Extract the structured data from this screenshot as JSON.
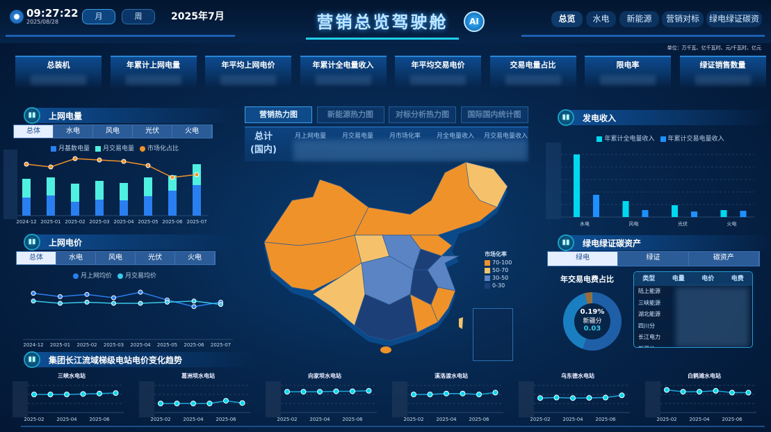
{
  "header": {
    "time": "09:27:22",
    "date": "2025/08/28",
    "period_tabs": [
      "月",
      "周"
    ],
    "active_period": "月",
    "current_month": "2025年7月",
    "title": "营销总览驾驶舱",
    "ai_label": "AI",
    "nav": [
      "总览",
      "水电",
      "新能源",
      "营销对标",
      "绿电绿证碳资"
    ],
    "active_nav": "总览",
    "unit_note": "单位：万千瓦、亿千瓦时、元/千瓦时、亿元"
  },
  "kpis": [
    "总装机",
    "年累计上网电量",
    "年平均上网电价",
    "年累计全电量收入",
    "年平均交易电价",
    "交易电量占比",
    "限电率",
    "绿证销售数量"
  ],
  "energy_tabs": [
    "总体",
    "水电",
    "风电",
    "光伏",
    "火电"
  ],
  "grid_energy": {
    "title": "上网电量",
    "legend": [
      "月基数电量",
      "月交易电量",
      "市场化占比"
    ]
  },
  "grid_price": {
    "title": "上网电价",
    "legend": [
      "月上网均价",
      "月交易均价"
    ]
  },
  "center": {
    "tabs": [
      "营销热力图",
      "新能源热力图",
      "对标分析热力图",
      "国际国内统计图"
    ],
    "active_tab": "营销热力图",
    "total_label_1": "总计",
    "total_label_2": "(国内)",
    "columns": [
      "月上网电量",
      "月交易电量",
      "月市场化率",
      "月全电量收入",
      "月交易电量收入"
    ],
    "map_legend_title": "市场化率",
    "map_legend": [
      {
        "label": "70-100",
        "color": "#f0922a"
      },
      {
        "label": "50-70",
        "color": "#f5c26b"
      },
      {
        "label": "30-50",
        "color": "#5a84c4"
      },
      {
        "label": "0-30",
        "color": "#1d3f78"
      }
    ]
  },
  "revenue": {
    "title": "发电收入",
    "legend": [
      "年累计全电量收入",
      "年累计交易电量收入"
    ]
  },
  "green": {
    "title": "绿电绿证碳资产",
    "tabs": [
      "绿电",
      "绿证",
      "碳资产"
    ],
    "active_tab": "绿电",
    "donut_title": "年交易电费占比",
    "donut_pct": "0.19%",
    "donut_name": "新疆分",
    "donut_value": "0.03",
    "table_headers": [
      "类型",
      "电量",
      "电价",
      "电费"
    ],
    "table_rows": [
      "陆上能源",
      "三峡能源",
      "湖北能源",
      "四川分",
      "长江电力",
      "新疆分"
    ]
  },
  "stations": {
    "title": "集团长江流域梯级电站电价变化趋势"
  },
  "chart_data": [
    {
      "type": "bar",
      "title": "上网电量",
      "categories": [
        "2024-12",
        "2025-01",
        "2025-02",
        "2025-03",
        "2025-04",
        "2025-05",
        "2025-06",
        "2025-07"
      ],
      "series": [
        {
          "name": "月基数电量",
          "values": [
            26,
            29,
            20,
            23,
            22,
            28,
            36,
            44
          ]
        },
        {
          "name": "月交易电量",
          "values": [
            27,
            26,
            26,
            27,
            25,
            27,
            22,
            30
          ]
        },
        {
          "name": "市场化占比",
          "type": "line",
          "values": [
            74,
            70,
            82,
            80,
            78,
            72,
            55,
            59
          ]
        }
      ],
      "stacked": true
    },
    {
      "type": "line",
      "title": "上网电价",
      "categories": [
        "2024-12",
        "2025-01",
        "2025-02",
        "2025-03",
        "2025-04",
        "2025-05",
        "2025-06",
        "2025-07"
      ],
      "series": [
        {
          "name": "月上网均价",
          "values": [
            69,
            66,
            68,
            65,
            70,
            63,
            57,
            61
          ]
        },
        {
          "name": "月交易均价",
          "values": [
            62,
            60,
            61,
            60,
            60,
            61,
            62,
            59
          ]
        }
      ]
    },
    {
      "type": "bar",
      "title": "发电收入",
      "categories": [
        "水电",
        "风电",
        "光伏",
        "火电"
      ],
      "series": [
        {
          "name": "年累计全电量收入",
          "values": [
            90,
            23,
            17,
            10
          ]
        },
        {
          "name": "年累计交易电量收入",
          "values": [
            32,
            10,
            8,
            9
          ]
        }
      ],
      "grid": true
    },
    {
      "type": "line",
      "stations": [
        {
          "name": "三峡水电站",
          "values": [
            2.0,
            2.0,
            2.0,
            2.05,
            2.1,
            2.15
          ]
        },
        {
          "name": "葛洲坝水电站",
          "values": [
            1.0,
            1.0,
            1.0,
            1.0,
            1.3,
            1.05
          ]
        },
        {
          "name": "向家坝水电站",
          "values": [
            2.3,
            2.3,
            2.3,
            2.35,
            2.35,
            2.4
          ]
        },
        {
          "name": "溪洛渡水电站",
          "values": [
            2.0,
            2.0,
            2.1,
            2.1,
            2.0,
            2.2
          ]
        },
        {
          "name": "乌东德水电站",
          "values": [
            1.6,
            1.65,
            1.6,
            1.62,
            1.65,
            1.9
          ]
        },
        {
          "name": "白鹤滩水电站",
          "values": [
            2.5,
            2.3,
            2.3,
            2.4,
            2.2,
            2.2
          ]
        }
      ],
      "x": [
        "2025-02",
        "2025-03",
        "2025-04",
        "2025-05",
        "2025-06",
        "2025-07"
      ],
      "xticks": [
        "2025-02",
        "2025-04",
        "2025-06"
      ],
      "ylim": [
        0,
        3
      ],
      "grid": true
    },
    {
      "type": "pie",
      "title": "年交易电费占比",
      "donut": true,
      "slices": [
        {
          "value": 55,
          "color": "#1f5fa8"
        },
        {
          "value": 40,
          "color": "#1a7fc0"
        },
        {
          "value": 4,
          "color": "#9a6a3a"
        },
        {
          "value": 0.19,
          "color": "#22b07a"
        }
      ]
    }
  ],
  "colors": {
    "base": "#2a7ff0",
    "trade": "#4ff0e0",
    "share": "#f0922a",
    "price": "#2a7ff0",
    "tradeprice": "#3ac8e8",
    "rev_total": "#00d8f0",
    "rev_trade": "#1e90ff"
  }
}
